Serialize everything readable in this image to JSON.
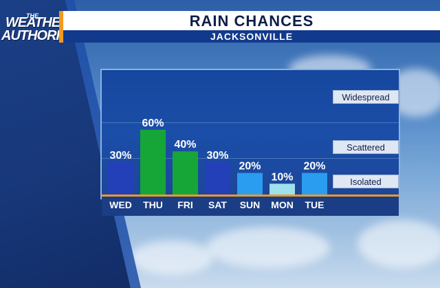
{
  "logo": {
    "line_small": "THE",
    "line1": "WEATHER",
    "line2": "AUTHORITY"
  },
  "header": {
    "title": "RAIN CHANCES",
    "subtitle": "JACKSONVILLE"
  },
  "levels": [
    "Widespread",
    "Scattered",
    "Isolated"
  ],
  "colors": {
    "accent": "#f29a1f",
    "wed": "#2440b8",
    "thu": "#16a638",
    "fri": "#16a638",
    "sat": "#2440b8",
    "sun": "#2a9df0",
    "mon": "#9ee0ec",
    "tue": "#2a9df0"
  },
  "chart_data": {
    "type": "bar",
    "title": "RAIN CHANCES",
    "subtitle": "JACKSONVILLE",
    "categories": [
      "WED",
      "THU",
      "FRI",
      "SAT",
      "SUN",
      "MON",
      "TUE"
    ],
    "values": [
      30,
      60,
      40,
      30,
      20,
      10,
      20
    ],
    "value_labels": [
      "30%",
      "60%",
      "40%",
      "30%",
      "20%",
      "10%",
      "20%"
    ],
    "ylim": [
      0,
      100
    ],
    "bar_colors": [
      "#2440b8",
      "#16a638",
      "#16a638",
      "#2440b8",
      "#2a9df0",
      "#9ee0ec",
      "#2a9df0"
    ],
    "grid": true,
    "legend": "none"
  }
}
